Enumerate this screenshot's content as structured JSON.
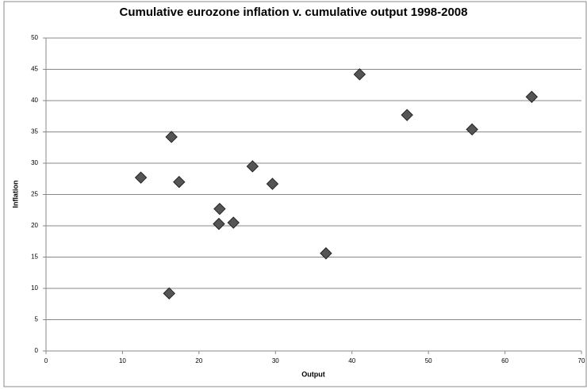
{
  "chart_data": {
    "type": "scatter",
    "title": "Cumulative eurozone inflation v. cumulative output 1998-2008",
    "x_label": "Output",
    "y_label": "Inflation",
    "series": [
      {
        "color": "#555555",
        "x": [
          12.4,
          16.4,
          17.4,
          16.1,
          22.7,
          22.6,
          24.5,
          27.0,
          29.6,
          36.6,
          41.0,
          47.2,
          55.7,
          63.5
        ],
        "values": [
          27.7,
          34.2,
          27.0,
          9.2,
          22.7,
          20.3,
          20.5,
          29.5,
          26.7,
          15.6,
          44.2,
          37.7,
          35.4,
          40.6
        ]
      }
    ],
    "xlim": [
      0,
      70
    ],
    "xticks": [
      0,
      10,
      20,
      30,
      40,
      50,
      60,
      70
    ],
    "ylim": [
      0,
      50
    ],
    "yticks": [
      0,
      5,
      10,
      15,
      20,
      25,
      30,
      35,
      40,
      45,
      50
    ],
    "grid": true
  }
}
